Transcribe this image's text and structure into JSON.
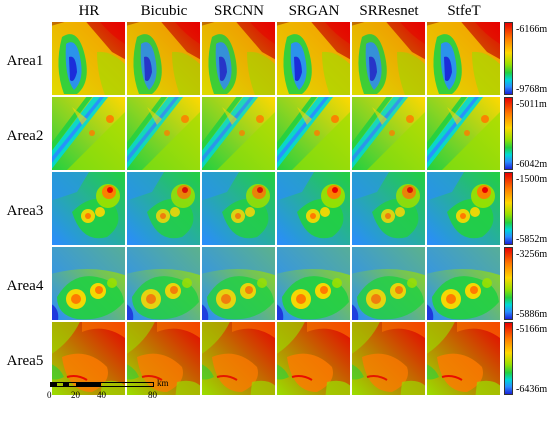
{
  "columns": [
    "HR",
    "Bicubic",
    "SRCNN",
    "SRGAN",
    "SRResnet",
    "StfeT"
  ],
  "rows": [
    {
      "label": "Area1",
      "max": "-6166m",
      "min": "-9768m"
    },
    {
      "label": "Area2",
      "max": "-5011m",
      "min": "-6042m"
    },
    {
      "label": "Area3",
      "max": "-1500m",
      "min": "-5852m"
    },
    {
      "label": "Area4",
      "max": "-3256m",
      "min": "-5886m"
    },
    {
      "label": "Area5",
      "max": "-5166m",
      "min": "-6436m"
    }
  ],
  "scalebar": {
    "unit": "km",
    "ticks": [
      "0",
      "20",
      "40",
      "80"
    ]
  },
  "colormap": [
    "#1a22d8",
    "#2a8cff",
    "#00d8d8",
    "#22d040",
    "#9ae000",
    "#ffd800",
    "#ff7a00",
    "#e80000"
  ]
}
